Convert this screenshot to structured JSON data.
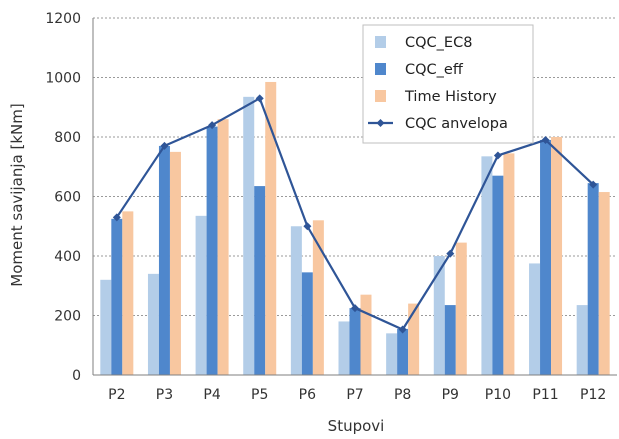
{
  "chart_data": {
    "type": "bar",
    "title": "",
    "xlabel": "Stupovi",
    "ylabel": "Moment savijanja [kNm]",
    "ylim": [
      0,
      1200
    ],
    "yticks": [
      0,
      200,
      400,
      600,
      800,
      1000,
      1200
    ],
    "grid": "horizontal-dashed",
    "legend_position": "top-right",
    "categories": [
      "P2",
      "P3",
      "P4",
      "P5",
      "P6",
      "P7",
      "P8",
      "P9",
      "P10",
      "P11",
      "P12"
    ],
    "series": [
      {
        "name": "CQC_EC8",
        "type": "bar",
        "color": "#b3cde8",
        "values": [
          320,
          340,
          535,
          935,
          500,
          180,
          140,
          400,
          735,
          375,
          235
        ]
      },
      {
        "name": "CQC_eff",
        "type": "bar",
        "color": "#4f87cc",
        "values": [
          525,
          770,
          835,
          635,
          345,
          225,
          155,
          235,
          670,
          790,
          645
        ]
      },
      {
        "name": "Time History",
        "type": "bar",
        "color": "#f8c7a0",
        "values": [
          550,
          750,
          860,
          985,
          520,
          270,
          240,
          445,
          745,
          800,
          615
        ]
      },
      {
        "name": "CQC anvelopa",
        "type": "line",
        "color": "#2f5597",
        "values": [
          530,
          770,
          840,
          930,
          500,
          225,
          153,
          408,
          738,
          790,
          640
        ]
      }
    ]
  }
}
